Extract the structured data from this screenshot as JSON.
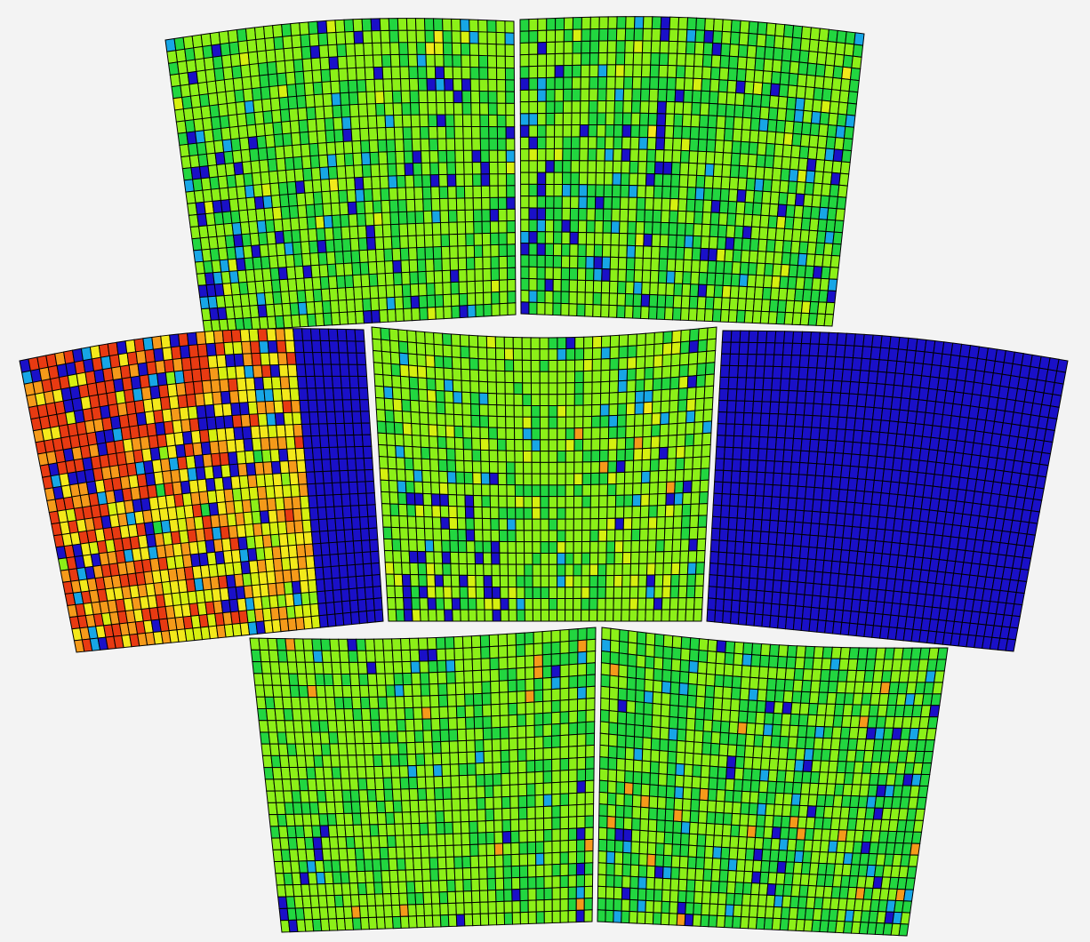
{
  "chart_data": {
    "type": "heatmap",
    "title": "",
    "xlabel": "",
    "ylabel": "",
    "legend": "none",
    "grid": false,
    "colormap": [
      "#1a10c8",
      "#17a6e6",
      "#20e07a",
      "#22d640",
      "#8cf018",
      "#d6f010",
      "#f3e91b",
      "#f59a1a",
      "#e83a12"
    ],
    "background_color": "#f3f3f3",
    "cell_border_color": "#000000",
    "modules": [
      {
        "name": "module-top-left",
        "rows": 25,
        "cols": 39,
        "level_mean": 0.47,
        "level_variation": 0.09,
        "low_value_fraction": 0.08,
        "dominant_level": "green"
      },
      {
        "name": "module-top-right",
        "rows": 25,
        "cols": 39,
        "level_mean": 0.45,
        "level_variation": 0.08,
        "low_value_fraction": 0.07,
        "dominant_level": "green"
      },
      {
        "name": "module-middle-left",
        "rows": 25,
        "cols": 39,
        "level_mean": 0.72,
        "level_variation": 0.22,
        "low_value_fraction": 0.2,
        "dominant_level": "yellow-red",
        "dead_columns_from": 31
      },
      {
        "name": "module-middle-center",
        "rows": 25,
        "cols": 39,
        "level_mean": 0.49,
        "level_variation": 0.09,
        "low_value_fraction": 0.05,
        "dominant_level": "green"
      },
      {
        "name": "module-middle-right",
        "rows": 25,
        "cols": 39,
        "level_mean": 0.0,
        "level_variation": 0.0,
        "low_value_fraction": 1.0,
        "dominant_level": "blue"
      },
      {
        "name": "module-bottom-left",
        "rows": 25,
        "cols": 39,
        "level_mean": 0.47,
        "level_variation": 0.08,
        "low_value_fraction": 0.03,
        "dominant_level": "green"
      },
      {
        "name": "module-bottom-right",
        "rows": 25,
        "cols": 39,
        "level_mean": 0.44,
        "level_variation": 0.08,
        "low_value_fraction": 0.06,
        "dominant_level": "green"
      }
    ]
  }
}
